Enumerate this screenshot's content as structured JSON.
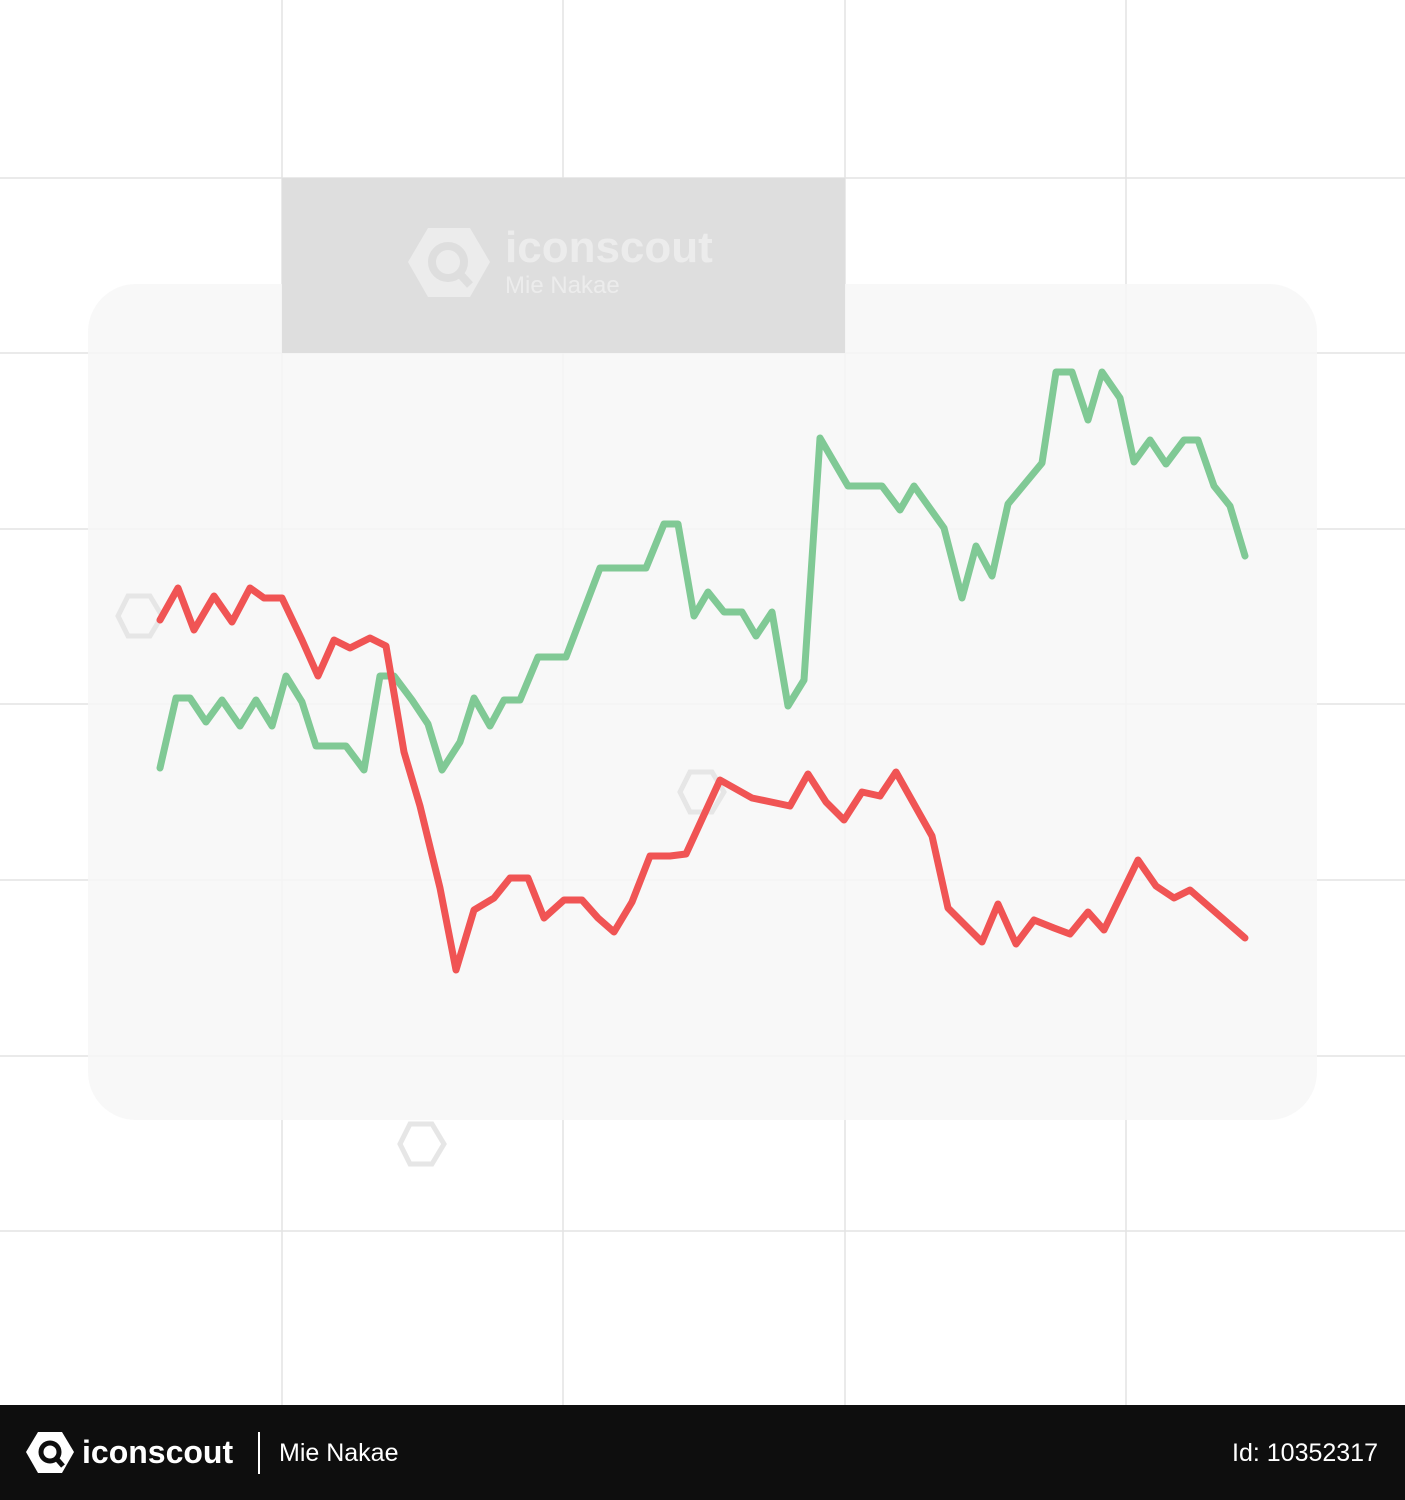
{
  "watermark": {
    "brand": "iconscout",
    "author": "Mie Nakae"
  },
  "footer": {
    "brand": "iconscout",
    "author": "Mie Nakae",
    "id": "Id: 10352317"
  }
}
